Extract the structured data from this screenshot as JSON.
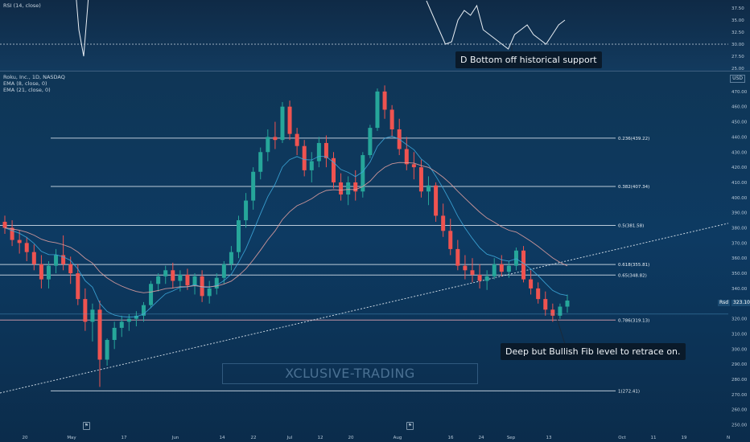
{
  "rsi_panel": {
    "title": "RSI (14, close)",
    "callout": "D Bottom off historical support",
    "y_ticks": [
      "37.50",
      "35.00",
      "32.50",
      "30.00",
      "27.50",
      "25.00"
    ]
  },
  "main_panel": {
    "legend": [
      "Roku, Inc., 1D, NASDAQ",
      "EMA (8, close, 0)",
      "EMA (21, close, 0)"
    ],
    "callout": "Deep but Bullish Fib level to retrace on.",
    "watermark": "XCLUSIVE-TRADING",
    "currency": "USD",
    "last_price_label": "Rsd",
    "last_price": "323.10"
  },
  "chart_data": {
    "type": "candlestick",
    "title": "Roku, Inc., 1D, NASDAQ",
    "y_range": [
      245,
      480
    ],
    "y_ticks": [
      250,
      260,
      270,
      280,
      290,
      300,
      310,
      320,
      330,
      340,
      350,
      360,
      370,
      380,
      390,
      400,
      410,
      420,
      430,
      440,
      450,
      460,
      470
    ],
    "x_tick_labels": [
      "20",
      "May",
      "17",
      "Jun",
      "14",
      "22",
      "Jul",
      "12",
      "20",
      "Aug",
      "16",
      "24",
      "Sep",
      "13",
      "Oct",
      "11",
      "19",
      "N"
    ],
    "fib_levels": [
      {
        "label": "0.236(439.22)",
        "value": 439.22
      },
      {
        "label": "0.382(407.34)",
        "value": 407.34
      },
      {
        "label": "0.5(381.58)",
        "value": 381.58
      },
      {
        "label": "0.618(355.81)",
        "value": 355.81
      },
      {
        "label": "0.65(348.82)",
        "value": 348.82
      },
      {
        "label": "0.786(319.13)",
        "value": 319.13
      },
      {
        "label": "1(272.41)",
        "value": 272.41
      }
    ],
    "trendline": {
      "from": [
        0,
        271
      ],
      "to": [
        1,
        383
      ]
    },
    "series": [
      {
        "name": "Roku, Inc.",
        "candles": [
          [
            384,
            388,
            376,
            380
          ],
          [
            380,
            385,
            368,
            372
          ],
          [
            372,
            378,
            363,
            370
          ],
          [
            370,
            374,
            358,
            364
          ],
          [
            364,
            369,
            352,
            356
          ],
          [
            356,
            362,
            340,
            346
          ],
          [
            346,
            358,
            340,
            355
          ],
          [
            355,
            366,
            350,
            362
          ],
          [
            362,
            375,
            352,
            356
          ],
          [
            356,
            361,
            343,
            350
          ],
          [
            350,
            356,
            329,
            333
          ],
          [
            333,
            340,
            312,
            318
          ],
          [
            318,
            330,
            305,
            326
          ],
          [
            326,
            332,
            275,
            293
          ],
          [
            293,
            307,
            289,
            306
          ],
          [
            306,
            318,
            300,
            314
          ],
          [
            314,
            322,
            308,
            318
          ],
          [
            318,
            323,
            312,
            320
          ],
          [
            320,
            325,
            315,
            322
          ],
          [
            322,
            331,
            318,
            329
          ],
          [
            329,
            345,
            327,
            343
          ],
          [
            343,
            350,
            338,
            348
          ],
          [
            348,
            355,
            343,
            352
          ],
          [
            352,
            357,
            340,
            345
          ],
          [
            345,
            352,
            338,
            349
          ],
          [
            349,
            353,
            339,
            342
          ],
          [
            342,
            350,
            336,
            348
          ],
          [
            348,
            352,
            331,
            335
          ],
          [
            335,
            345,
            330,
            340
          ],
          [
            340,
            350,
            336,
            347
          ],
          [
            347,
            358,
            343,
            356
          ],
          [
            356,
            368,
            352,
            364
          ],
          [
            364,
            388,
            360,
            385
          ],
          [
            385,
            403,
            380,
            398
          ],
          [
            398,
            420,
            392,
            417
          ],
          [
            417,
            433,
            412,
            430
          ],
          [
            430,
            445,
            424,
            440
          ],
          [
            440,
            450,
            432,
            438
          ],
          [
            438,
            463,
            436,
            460
          ],
          [
            460,
            464,
            438,
            442
          ],
          [
            442,
            446,
            428,
            434
          ],
          [
            434,
            438,
            414,
            418
          ],
          [
            418,
            430,
            410,
            424
          ],
          [
            424,
            440,
            420,
            436
          ],
          [
            436,
            441,
            420,
            426
          ],
          [
            426,
            430,
            406,
            410
          ],
          [
            410,
            416,
            398,
            402
          ],
          [
            402,
            414,
            395,
            410
          ],
          [
            410,
            418,
            398,
            404
          ],
          [
            404,
            430,
            400,
            428
          ],
          [
            428,
            448,
            426,
            446
          ],
          [
            446,
            472,
            444,
            470
          ],
          [
            470,
            474,
            452,
            458
          ],
          [
            458,
            461,
            440,
            445
          ],
          [
            445,
            452,
            428,
            432
          ],
          [
            432,
            440,
            418,
            422
          ],
          [
            422,
            430,
            412,
            420
          ],
          [
            420,
            425,
            400,
            404
          ],
          [
            404,
            414,
            395,
            408
          ],
          [
            408,
            410,
            384,
            388
          ],
          [
            388,
            396,
            374,
            378
          ],
          [
            378,
            386,
            362,
            366
          ],
          [
            366,
            372,
            352,
            355
          ],
          [
            355,
            362,
            346,
            352
          ],
          [
            352,
            360,
            344,
            349
          ],
          [
            349,
            356,
            340,
            345
          ],
          [
            345,
            352,
            339,
            348
          ],
          [
            348,
            360,
            346,
            356
          ],
          [
            356,
            362,
            348,
            351
          ],
          [
            351,
            358,
            347,
            355
          ],
          [
            355,
            367,
            352,
            365
          ],
          [
            365,
            368,
            344,
            346
          ],
          [
            346,
            352,
            336,
            340
          ],
          [
            340,
            344,
            330,
            333
          ],
          [
            333,
            338,
            322,
            326
          ],
          [
            326,
            330,
            318,
            322
          ],
          [
            322,
            330,
            320,
            328
          ],
          [
            328,
            336,
            324,
            332
          ]
        ]
      },
      {
        "name": "EMA (8, close, 0)"
      },
      {
        "name": "EMA (21, close, 0)"
      }
    ]
  },
  "rsi_data": {
    "segments": [
      {
        "values": [
          59,
          45,
          33,
          27.5,
          40,
          46,
          41
        ]
      },
      {
        "values": [
          39,
          36,
          33,
          30,
          30.5,
          35,
          37,
          36,
          38,
          33,
          32,
          31,
          30,
          29,
          32,
          33,
          34,
          32,
          31,
          30,
          32,
          34,
          35
        ]
      }
    ],
    "reference_level": 30
  },
  "colors": {
    "up": "#26a69a",
    "down": "#ef5350",
    "ema_fast": "#3da7d9",
    "ema_slow": "#e0a0a0",
    "fib": "#d9e4ee",
    "fib_0786": "#e3a5b2",
    "trend": "#dce6ef"
  }
}
